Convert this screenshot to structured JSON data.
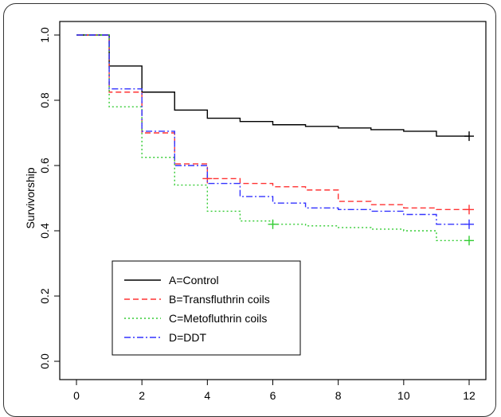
{
  "chart_data": {
    "type": "line",
    "step": true,
    "title": "",
    "xlabel": "",
    "ylabel": "Survivorship",
    "xlim": [
      0,
      12
    ],
    "ylim": [
      0,
      1
    ],
    "xticks": [
      "0",
      "2",
      "4",
      "6",
      "8",
      "10",
      "12"
    ],
    "yticks": [
      "0.0",
      "0.2",
      "0.4",
      "0.6",
      "0.8",
      "1.0"
    ],
    "grid": false,
    "legend_position": "bottom-left",
    "series": [
      {
        "name": "A=Control",
        "color": "#000000",
        "dash": "solid",
        "x": [
          0,
          1,
          2,
          3,
          4,
          5,
          6,
          7,
          8,
          9,
          10,
          11,
          12
        ],
        "y": [
          1.0,
          0.905,
          0.825,
          0.77,
          0.745,
          0.735,
          0.725,
          0.72,
          0.715,
          0.71,
          0.705,
          0.69,
          0.69
        ],
        "censor": [
          [
            12,
            0.69
          ]
        ]
      },
      {
        "name": "B=Transfluthrin coils",
        "color": "#ff3333",
        "dash": "dashed",
        "x": [
          0,
          1,
          2,
          3,
          4,
          5,
          6,
          7,
          8,
          9,
          10,
          11,
          12
        ],
        "y": [
          1.0,
          0.825,
          0.7,
          0.605,
          0.56,
          0.545,
          0.535,
          0.525,
          0.49,
          0.48,
          0.47,
          0.465,
          0.465
        ],
        "censor": [
          [
            4,
            0.56
          ],
          [
            12,
            0.465
          ]
        ]
      },
      {
        "name": "C=Metofluthrin coils",
        "color": "#33cc33",
        "dash": "dotted",
        "x": [
          0,
          1,
          2,
          3,
          4,
          5,
          6,
          7,
          8,
          9,
          10,
          11,
          12
        ],
        "y": [
          1.0,
          0.78,
          0.625,
          0.54,
          0.46,
          0.43,
          0.42,
          0.415,
          0.41,
          0.405,
          0.4,
          0.37,
          0.37
        ],
        "censor": [
          [
            6,
            0.42
          ],
          [
            12,
            0.37
          ]
        ]
      },
      {
        "name": "D=DDT",
        "color": "#3333ff",
        "dash": "dashdot",
        "x": [
          0,
          1,
          2,
          3,
          4,
          5,
          6,
          7,
          8,
          9,
          10,
          11,
          12
        ],
        "y": [
          1.0,
          0.835,
          0.705,
          0.6,
          0.545,
          0.505,
          0.485,
          0.47,
          0.465,
          0.46,
          0.45,
          0.42,
          0.42
        ],
        "censor": [
          [
            12,
            0.42
          ]
        ]
      }
    ]
  }
}
